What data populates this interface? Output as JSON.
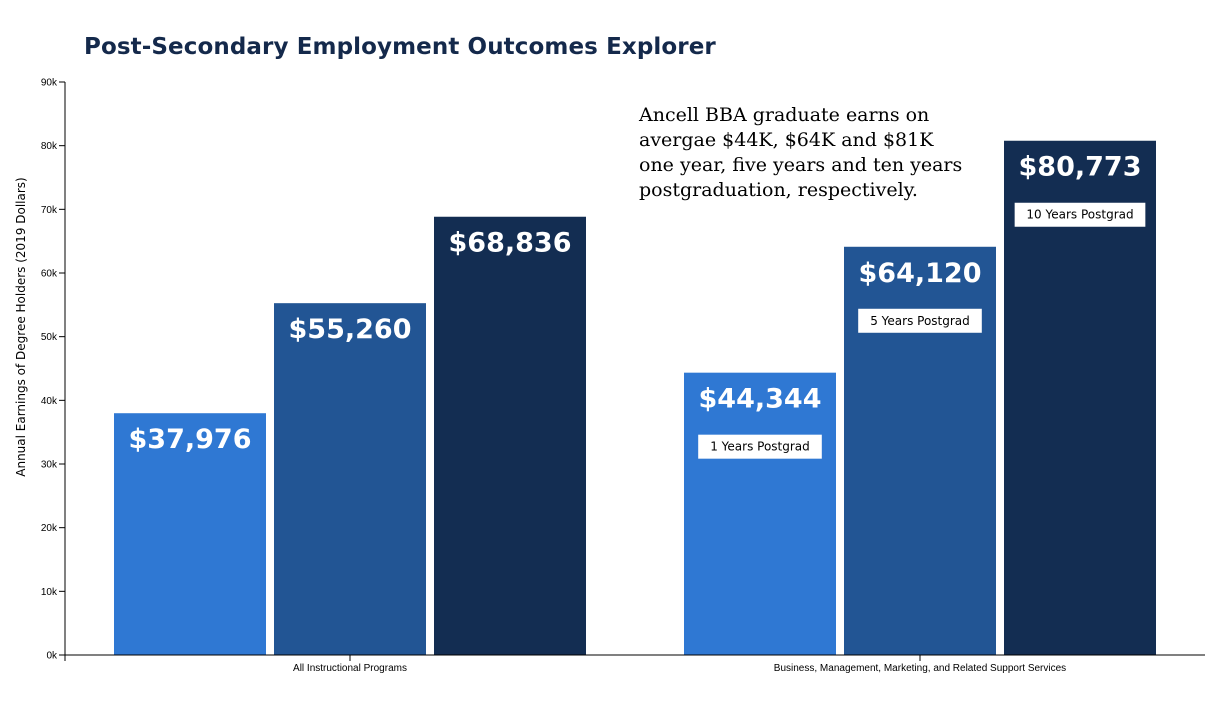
{
  "page": {
    "title": "Post-Secondary Employment Outcomes Explorer",
    "annotation": "Ancell BBA graduate earns on avergae $44K, $64K and $81K one year, five years and ten years postgraduation, respectively."
  },
  "chart_data": {
    "type": "bar",
    "title": "Post-Secondary Employment Outcomes Explorer",
    "xlabel": "",
    "ylabel": "Annual Earnings of Degree Holders (2019 Dollars)",
    "ylim": [
      0,
      90000
    ],
    "yticks": [
      {
        "value": 0,
        "label": "0k"
      },
      {
        "value": 10000,
        "label": "10k"
      },
      {
        "value": 20000,
        "label": "20k"
      },
      {
        "value": 30000,
        "label": "30k"
      },
      {
        "value": 40000,
        "label": "40k"
      },
      {
        "value": 50000,
        "label": "50k"
      },
      {
        "value": 60000,
        "label": "60k"
      },
      {
        "value": 70000,
        "label": "70k"
      },
      {
        "value": 80000,
        "label": "80k"
      },
      {
        "value": 90000,
        "label": "90k"
      }
    ],
    "grid": false,
    "categories": [
      "All Instructional Programs",
      "Business, Management, Marketing, and Related Support Services"
    ],
    "series": [
      {
        "name": "1 Years Postgrad",
        "color": "#2f78d3",
        "values": [
          37976,
          44344
        ],
        "labels": [
          "$37,976",
          "$44,344"
        ]
      },
      {
        "name": "5 Years Postgrad",
        "color": "#225594",
        "values": [
          55260,
          64120
        ],
        "labels": [
          "$55,260",
          "$64,120"
        ]
      },
      {
        "name": "10 Years Postgrad",
        "color": "#132d52",
        "values": [
          68836,
          80773
        ],
        "labels": [
          "$68,836",
          "$80,773"
        ]
      }
    ],
    "badge_category_index": 1
  }
}
